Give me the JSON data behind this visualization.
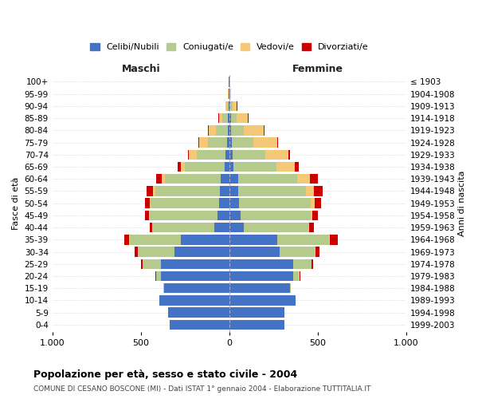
{
  "age_groups": [
    "100+",
    "95-99",
    "90-94",
    "85-89",
    "80-84",
    "75-79",
    "70-74",
    "65-69",
    "60-64",
    "55-59",
    "50-54",
    "45-49",
    "40-44",
    "35-39",
    "30-34",
    "25-29",
    "20-24",
    "15-19",
    "10-14",
    "5-9",
    "0-4"
  ],
  "birth_years": [
    "≤ 1903",
    "1904-1908",
    "1909-1913",
    "1914-1918",
    "1919-1923",
    "1924-1928",
    "1929-1933",
    "1934-1938",
    "1939-1943",
    "1944-1948",
    "1949-1953",
    "1954-1958",
    "1959-1963",
    "1964-1968",
    "1969-1973",
    "1974-1978",
    "1979-1983",
    "1984-1988",
    "1989-1993",
    "1994-1998",
    "1999-2003"
  ],
  "male_celibe": [
    2,
    2,
    5,
    8,
    10,
    15,
    20,
    25,
    50,
    55,
    60,
    65,
    85,
    275,
    310,
    385,
    385,
    370,
    395,
    345,
    335
  ],
  "male_coniugato": [
    1,
    3,
    10,
    30,
    65,
    105,
    165,
    225,
    315,
    365,
    385,
    385,
    345,
    285,
    205,
    105,
    28,
    5,
    2,
    0,
    0
  ],
  "male_vedovo": [
    0,
    2,
    8,
    22,
    42,
    52,
    42,
    22,
    16,
    10,
    6,
    5,
    5,
    5,
    3,
    2,
    2,
    0,
    0,
    0,
    0
  ],
  "male_divorziato": [
    0,
    0,
    0,
    2,
    5,
    5,
    8,
    20,
    32,
    36,
    26,
    20,
    15,
    30,
    15,
    5,
    2,
    0,
    0,
    0,
    0
  ],
  "female_celibe": [
    2,
    2,
    5,
    8,
    10,
    15,
    20,
    25,
    50,
    52,
    56,
    62,
    82,
    272,
    282,
    362,
    362,
    342,
    372,
    312,
    312
  ],
  "female_coniugato": [
    1,
    3,
    12,
    35,
    72,
    122,
    182,
    242,
    332,
    382,
    402,
    396,
    362,
    292,
    202,
    102,
    32,
    5,
    2,
    0,
    0
  ],
  "female_vedovo": [
    0,
    5,
    25,
    62,
    112,
    132,
    132,
    102,
    72,
    42,
    22,
    12,
    8,
    5,
    3,
    2,
    2,
    0,
    0,
    0,
    0
  ],
  "female_divorziato": [
    0,
    0,
    2,
    3,
    5,
    5,
    10,
    25,
    46,
    52,
    36,
    32,
    26,
    42,
    22,
    8,
    3,
    0,
    0,
    0,
    0
  ],
  "colors": {
    "celibe": "#4472C4",
    "coniugato": "#B5CB8E",
    "vedovo": "#F5C878",
    "divorziato": "#CC0000"
  },
  "title": "Popolazione per età, sesso e stato civile - 2004",
  "subtitle": "COMUNE DI CESANO BOSCONE (MI) - Dati ISTAT 1° gennaio 2004 - Elaborazione TUTTITALIA.IT",
  "xlabel_left": "Maschi",
  "xlabel_right": "Femmine",
  "ylabel_left": "Fasce di età",
  "ylabel_right": "Anni di nascita",
  "xlim": 1000,
  "xticks": [
    -1000,
    -500,
    0,
    500,
    1000
  ],
  "xticklabels": [
    "1.000",
    "500",
    "0",
    "500",
    "1.000"
  ],
  "bg_color": "#FFFFFF",
  "grid_color": "#CCCCCC"
}
